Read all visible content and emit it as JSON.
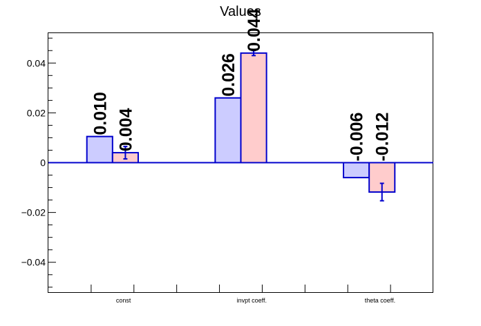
{
  "chart_data": {
    "type": "bar",
    "title": "Values",
    "xlabel": "",
    "ylabel": "",
    "ylim": [
      -0.052,
      0.052
    ],
    "yticks": [
      -0.04,
      -0.02,
      0,
      0.02,
      0.04
    ],
    "ytick_labels": [
      "−0.04",
      "−0.02",
      "0",
      "0.02",
      "0.04"
    ],
    "categories": [
      "const",
      "invpt coeff.",
      "theta coeff."
    ],
    "series": [
      {
        "values": [
          0.0105,
          0.026,
          -0.006
        ],
        "errors": [
          0,
          0,
          0
        ],
        "labels": [
          "0.010",
          "0.026",
          "-0.006"
        ],
        "fill": "#ccccff"
      },
      {
        "values": [
          0.004,
          0.044,
          -0.0118
        ],
        "errors": [
          0.0025,
          0.001,
          0.0035
        ],
        "labels": [
          "0.004",
          "0.044",
          "-0.012"
        ],
        "fill": "#ffcccc"
      }
    ],
    "bar_edge_color": "#0000cc",
    "grid": false,
    "legend": "none"
  }
}
